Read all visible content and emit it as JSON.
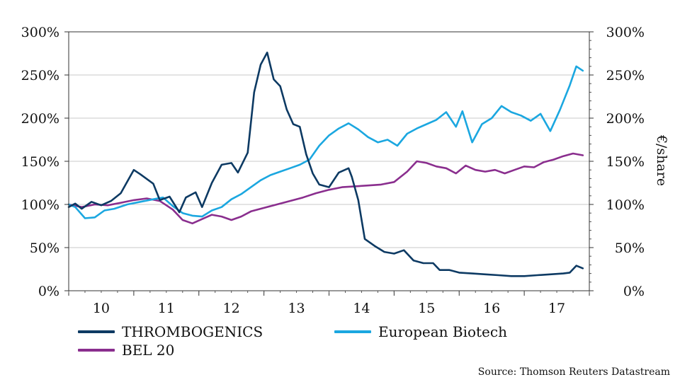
{
  "chart_data": {
    "type": "line",
    "title": "",
    "xlabel": "",
    "ylabel": "",
    "y2label": "€/share",
    "xlim": [
      9.5,
      17.5
    ],
    "ylim": [
      0,
      300
    ],
    "x_ticks": [
      "10",
      "11",
      "12",
      "13",
      "14",
      "15",
      "16",
      "17"
    ],
    "y_ticks": [
      "0%",
      "50%",
      "100%",
      "150%",
      "200%",
      "250%",
      "300%"
    ],
    "y2_ticks": [
      "0%",
      "50%",
      "100%",
      "150%",
      "200%",
      "250%",
      "300%"
    ],
    "grid": "horizontal",
    "legend_position": "bottom",
    "series": [
      {
        "name": "THROMBOGENICS",
        "color": "#0d3a63",
        "x": [
          9.5,
          9.6,
          9.7,
          9.85,
          10.0,
          10.15,
          10.3,
          10.5,
          10.6,
          10.8,
          10.9,
          11.05,
          11.2,
          11.3,
          11.45,
          11.55,
          11.7,
          11.85,
          12.0,
          12.1,
          12.25,
          12.35,
          12.45,
          12.55,
          12.65,
          12.75,
          12.85,
          12.95,
          13.05,
          13.15,
          13.25,
          13.35,
          13.5,
          13.65,
          13.8,
          13.85,
          13.95,
          14.05,
          14.2,
          14.35,
          14.5,
          14.65,
          14.8,
          14.95,
          15.1,
          15.2,
          15.35,
          15.5,
          15.7,
          15.9,
          16.1,
          16.3,
          16.5,
          16.7,
          16.9,
          17.1,
          17.2,
          17.3,
          17.4
        ],
        "values": [
          97,
          101,
          95,
          103,
          99,
          104,
          113,
          140,
          135,
          124,
          105,
          109,
          91,
          108,
          114,
          97,
          125,
          146,
          148,
          137,
          160,
          230,
          262,
          276,
          245,
          237,
          210,
          193,
          190,
          158,
          136,
          123,
          120,
          137,
          142,
          132,
          105,
          60,
          52,
          45,
          43,
          47,
          35,
          32,
          32,
          24,
          24,
          21,
          20,
          19,
          18,
          17,
          17,
          18,
          19,
          20,
          21,
          29,
          26
        ]
      },
      {
        "name": "European Biotech",
        "color": "#1ba7e0",
        "x": [
          9.5,
          9.6,
          9.75,
          9.9,
          10.05,
          10.2,
          10.4,
          10.6,
          10.8,
          10.95,
          11.1,
          11.25,
          11.4,
          11.55,
          11.7,
          11.85,
          12.0,
          12.15,
          12.3,
          12.45,
          12.6,
          12.75,
          12.9,
          13.05,
          13.2,
          13.35,
          13.5,
          13.65,
          13.8,
          13.95,
          14.1,
          14.25,
          14.4,
          14.55,
          14.7,
          14.85,
          15.0,
          15.15,
          15.3,
          15.45,
          15.55,
          15.7,
          15.85,
          16.0,
          16.15,
          16.3,
          16.45,
          16.6,
          16.75,
          16.9,
          17.05,
          17.2,
          17.3,
          17.4
        ],
        "values": [
          100,
          97,
          84,
          85,
          93,
          95,
          100,
          103,
          106,
          108,
          98,
          90,
          87,
          86,
          93,
          97,
          106,
          112,
          120,
          128,
          134,
          138,
          142,
          146,
          152,
          168,
          180,
          188,
          194,
          187,
          178,
          172,
          175,
          168,
          182,
          188,
          193,
          198,
          207,
          190,
          208,
          172,
          193,
          200,
          214,
          207,
          203,
          197,
          205,
          185,
          210,
          238,
          260,
          255
        ]
      },
      {
        "name": "BEL 20",
        "color": "#8a2e8e",
        "x": [
          9.5,
          9.7,
          9.9,
          10.1,
          10.3,
          10.5,
          10.7,
          10.9,
          11.1,
          11.25,
          11.4,
          11.55,
          11.7,
          11.85,
          12.0,
          12.15,
          12.3,
          12.5,
          12.7,
          12.9,
          13.1,
          13.3,
          13.5,
          13.7,
          13.9,
          14.1,
          14.3,
          14.5,
          14.7,
          14.85,
          15.0,
          15.15,
          15.3,
          15.45,
          15.6,
          15.75,
          15.9,
          16.05,
          16.2,
          16.35,
          16.5,
          16.65,
          16.8,
          16.95,
          17.1,
          17.25,
          17.4
        ],
        "values": [
          100,
          97,
          100,
          99,
          102,
          105,
          107,
          104,
          94,
          82,
          78,
          83,
          88,
          86,
          82,
          86,
          92,
          96,
          100,
          104,
          108,
          113,
          117,
          120,
          121,
          122,
          123,
          126,
          138,
          150,
          148,
          144,
          142,
          136,
          145,
          140,
          138,
          140,
          136,
          140,
          144,
          143,
          149,
          152,
          156,
          159,
          157
        ]
      }
    ]
  },
  "source": "Source: Thomson Reuters Datastream"
}
